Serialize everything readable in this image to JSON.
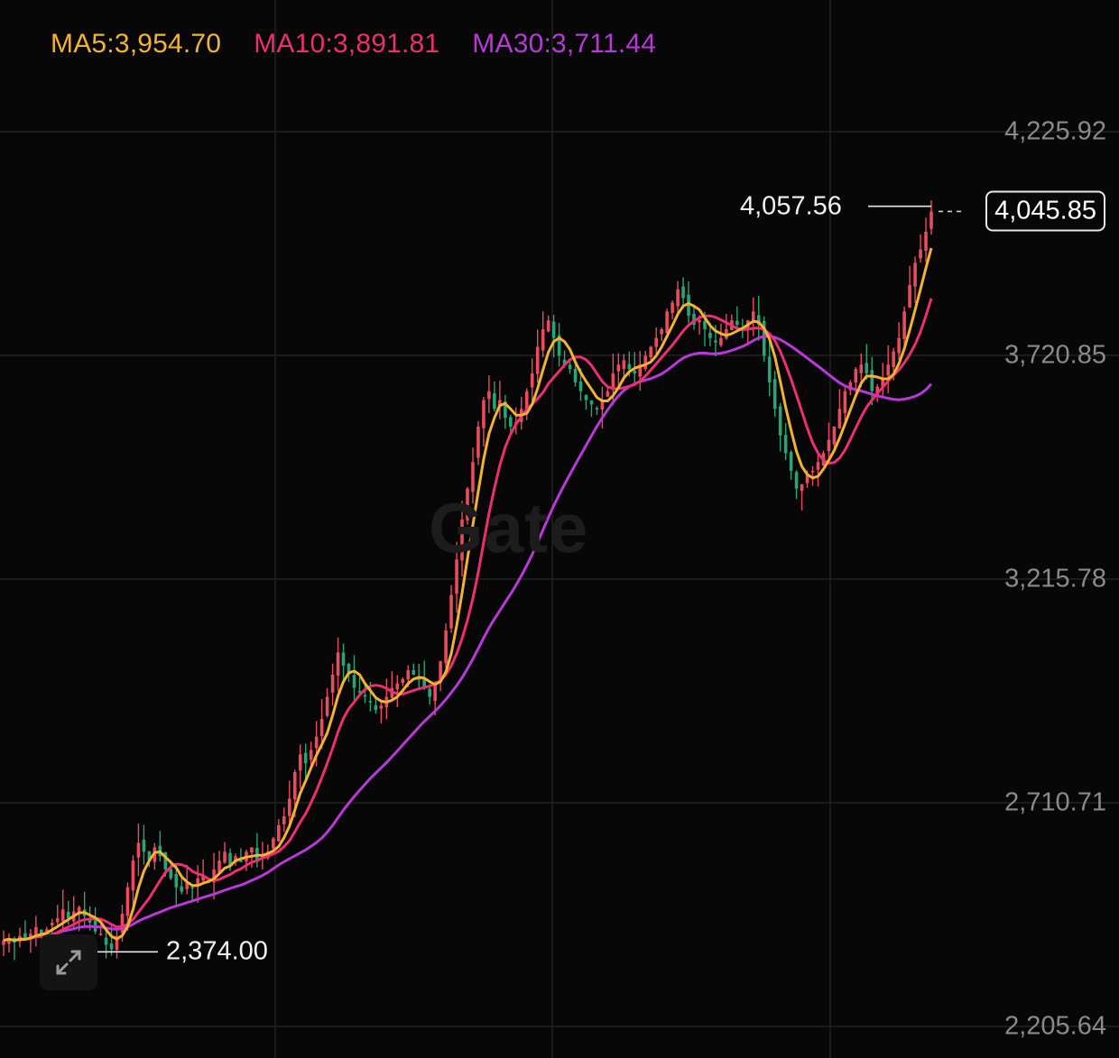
{
  "watermark": "Gate",
  "colors": {
    "background": "#070707",
    "grid": "#222222",
    "up": "#ea4b5e",
    "down": "#27a574",
    "ma5": "#f2b232",
    "ma10": "#ea2f73",
    "ma30": "#b73ad6",
    "axis_text": "#8a8a8a"
  },
  "legend": {
    "ma5": "MA5:3,954.70",
    "ma10": "MA10:3,891.81",
    "ma30": "MA30:3,711.44"
  },
  "icons": {
    "expand": "expand-arrows-icon"
  },
  "chart_data": {
    "type": "candlestick",
    "y_ticks": [
      "4,225.92",
      "3,720.85",
      "3,215.78",
      "2,710.71",
      "2,205.64"
    ],
    "y_tick_values": [
      4225.92,
      3720.85,
      3215.78,
      2710.71,
      2205.64
    ],
    "high_marker": {
      "label": "4,057.56",
      "value": 4057.56
    },
    "low_marker": {
      "label": "2,374.00",
      "value": 2374.0
    },
    "last_price": {
      "label": "4,045.85",
      "value": 4045.85
    },
    "grid": true,
    "close_series": [
      2400,
      2405,
      2395,
      2410,
      2402,
      2415,
      2430,
      2410,
      2425,
      2440,
      2450,
      2470,
      2450,
      2465,
      2475,
      2455,
      2440,
      2420,
      2415,
      2390,
      2380,
      2410,
      2460,
      2520,
      2580,
      2620,
      2600,
      2580,
      2610,
      2590,
      2560,
      2540,
      2520,
      2510,
      2530,
      2520,
      2540,
      2545,
      2530,
      2560,
      2580,
      2600,
      2570,
      2590,
      2580,
      2600,
      2610,
      2580,
      2590,
      2600,
      2630,
      2660,
      2680,
      2720,
      2780,
      2820,
      2800,
      2830,
      2860,
      2900,
      2950,
      3000,
      3050,
      3020,
      3000,
      2970,
      2960,
      2950,
      2940,
      2920,
      2930,
      2950,
      2970,
      2980,
      2990,
      3010,
      3000,
      2990,
      2970,
      2950,
      2980,
      3030,
      3100,
      3180,
      3260,
      3350,
      3420,
      3480,
      3560,
      3620,
      3640,
      3600,
      3620,
      3580,
      3560,
      3570,
      3600,
      3640,
      3680,
      3740,
      3780,
      3800,
      3760,
      3720,
      3700,
      3690,
      3660,
      3640,
      3620,
      3610,
      3600,
      3620,
      3640,
      3680,
      3700,
      3710,
      3690,
      3680,
      3700,
      3720,
      3740,
      3760,
      3780,
      3820,
      3840,
      3870,
      3850,
      3810,
      3790,
      3800,
      3780,
      3760,
      3750,
      3760,
      3780,
      3800,
      3790,
      3780,
      3800,
      3820,
      3790,
      3720,
      3660,
      3600,
      3540,
      3500,
      3460,
      3420,
      3430,
      3450,
      3460,
      3480,
      3500,
      3530,
      3560,
      3600,
      3640,
      3660,
      3690,
      3700,
      3680,
      3640,
      3650,
      3670,
      3700,
      3730,
      3760,
      3820,
      3880,
      3930,
      3960,
      4000,
      4045.85
    ],
    "ma5_last": 3954.7,
    "ma10_last": 3891.81,
    "ma30_last": 3711.44
  }
}
